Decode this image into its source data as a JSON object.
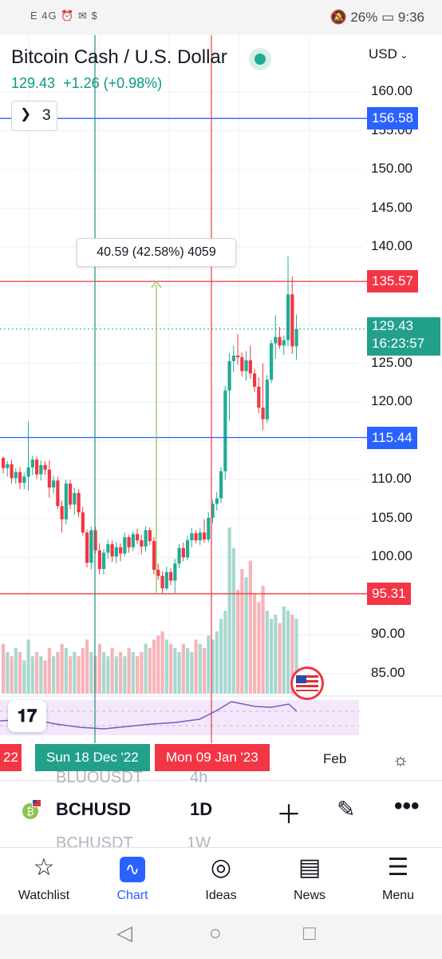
{
  "status_bar": {
    "left": "E 4G ⏰ ✉ $",
    "battery": "26%",
    "time": "9:36"
  },
  "header": {
    "title": "Bitcoin Cash / U.S. Dollar",
    "price": "129.43",
    "change": "+1.26 (+0.98%)",
    "currency": "USD",
    "indicators_count": "3"
  },
  "axis_labels": [
    "160.00",
    "155.00",
    "150.00",
    "145.00",
    "140.00",
    "125.00",
    "120.00",
    "110.00",
    "105.00",
    "100.00",
    "90.00",
    "85.00"
  ],
  "price_tags": {
    "blue_top": "156.58",
    "red_top": "135.57",
    "current": "129.43",
    "countdown": "16:23:57",
    "blue_bottom": "115.44",
    "red_bottom": "95.31"
  },
  "measure": {
    "label": "40.59 (42.58%) 4059"
  },
  "dates": {
    "left_cut": "22",
    "first": "Sun 18 Dec '22",
    "second": "Mon 09 Jan '23",
    "feb": "Feb"
  },
  "symbol_list": {
    "faded_top_symbol": "BLUOUSDT",
    "faded_top_tf": "4h",
    "faded_bottom_symbol": "BCHUSDT",
    "faded_bottom_tf": "1W"
  },
  "toolbar": {
    "symbol": "BCHUSD",
    "timeframe": "1D"
  },
  "nav": [
    {
      "label": "Watchlist",
      "icon": "star-icon"
    },
    {
      "label": "Chart",
      "icon": "chart-icon"
    },
    {
      "label": "Ideas",
      "icon": "bulb-icon"
    },
    {
      "label": "News",
      "icon": "news-icon"
    },
    {
      "label": "Menu",
      "icon": "menu-icon"
    }
  ],
  "colors": {
    "up": "#22ab94",
    "down": "#f23645",
    "blue": "#2962ff",
    "accent": "#2962ff"
  },
  "chart_data": {
    "type": "candlestick",
    "ylim": [
      80,
      163
    ],
    "hlines": [
      156.58,
      135.57,
      115.44,
      95.31
    ],
    "current": 129.43,
    "candles": [
      [
        112.8,
        113.0,
        110.8,
        111.5
      ],
      [
        111.5,
        112.4,
        110.4,
        112.0
      ],
      [
        112.0,
        112.6,
        109.5,
        110.2
      ],
      [
        110.2,
        111.5,
        109.5,
        111.0
      ],
      [
        111.0,
        111.6,
        108.8,
        109.6
      ],
      [
        109.6,
        110.9,
        108.8,
        110.4
      ],
      [
        110.4,
        117.5,
        108.6,
        111.6
      ],
      [
        111.6,
        113.1,
        110.6,
        112.6
      ],
      [
        112.6,
        113.0,
        110.1,
        110.7
      ],
      [
        110.7,
        112.5,
        109.9,
        111.9
      ],
      [
        111.9,
        112.4,
        110.6,
        111.3
      ],
      [
        111.3,
        112.5,
        107.7,
        109.0
      ],
      [
        109.0,
        110.5,
        108.2,
        109.9
      ],
      [
        109.9,
        110.4,
        106.2,
        106.6
      ],
      [
        106.6,
        107.3,
        103.2,
        104.9
      ],
      [
        104.9,
        110.0,
        104.2,
        109.5
      ],
      [
        109.5,
        110.0,
        106.2,
        106.8
      ],
      [
        106.8,
        109.0,
        105.5,
        108.3
      ],
      [
        108.3,
        108.8,
        105.2,
        105.8
      ],
      [
        105.8,
        106.5,
        102.8,
        103.2
      ],
      [
        103.2,
        103.6,
        98.7,
        99.3
      ],
      [
        99.3,
        104.0,
        98.4,
        103.5
      ],
      [
        103.5,
        103.9,
        100.5,
        100.9
      ],
      [
        100.9,
        101.8,
        97.8,
        98.5
      ],
      [
        98.5,
        101.1,
        97.8,
        100.6
      ],
      [
        100.6,
        102.3,
        99.8,
        101.7
      ],
      [
        101.7,
        102.2,
        99.4,
        100.1
      ],
      [
        100.1,
        102.0,
        99.2,
        101.3
      ],
      [
        101.3,
        101.8,
        99.5,
        100.5
      ],
      [
        100.5,
        103.2,
        100.1,
        102.6
      ],
      [
        102.6,
        102.9,
        100.6,
        101.3
      ],
      [
        101.3,
        103.4,
        100.8,
        103.0
      ],
      [
        103.0,
        103.7,
        101.7,
        102.2
      ],
      [
        102.2,
        102.9,
        100.4,
        101.4
      ],
      [
        101.4,
        104.0,
        100.7,
        103.5
      ],
      [
        103.5,
        103.9,
        101.6,
        102.1
      ],
      [
        102.1,
        102.6,
        97.8,
        98.4
      ],
      [
        98.4,
        99.2,
        97.1,
        97.6
      ],
      [
        97.6,
        98.2,
        95.3,
        96.0
      ],
      [
        96.0,
        98.8,
        95.7,
        98.1
      ],
      [
        98.1,
        98.6,
        96.4,
        97.0
      ],
      [
        97.0,
        99.8,
        95.4,
        99.2
      ],
      [
        99.2,
        101.7,
        98.6,
        101.2
      ],
      [
        101.2,
        101.9,
        99.5,
        100.0
      ],
      [
        100.0,
        102.8,
        99.6,
        102.2
      ],
      [
        102.2,
        103.8,
        101.3,
        103.1
      ],
      [
        103.1,
        103.5,
        101.8,
        102.2
      ],
      [
        102.2,
        103.8,
        101.6,
        103.2
      ],
      [
        103.2,
        104.9,
        101.9,
        102.3
      ],
      [
        102.3,
        105.8,
        101.9,
        105.1
      ],
      [
        105.1,
        107.4,
        104.4,
        106.9
      ],
      [
        106.9,
        108.4,
        106.0,
        107.6
      ],
      [
        107.6,
        111.6,
        107.0,
        111.1
      ],
      [
        111.1,
        122.1,
        110.0,
        121.5
      ],
      [
        121.5,
        126.3,
        117.6,
        125.3
      ],
      [
        125.3,
        127.3,
        123.9,
        126.0
      ],
      [
        126.0,
        128.8,
        124.8,
        125.8
      ],
      [
        125.8,
        126.4,
        123.3,
        124.0
      ],
      [
        124.0,
        126.6,
        122.8,
        125.4
      ],
      [
        125.4,
        127.3,
        123.0,
        123.7
      ],
      [
        123.7,
        124.3,
        121.3,
        122.0
      ],
      [
        122.0,
        123.2,
        118.6,
        119.3
      ],
      [
        119.3,
        125.0,
        116.4,
        117.8
      ],
      [
        117.8,
        123.5,
        117.3,
        122.9
      ],
      [
        122.9,
        128.0,
        122.5,
        127.6
      ],
      [
        127.6,
        131.2,
        125.6,
        128.4
      ],
      [
        128.4,
        129.7,
        126.9,
        127.3
      ],
      [
        127.3,
        128.6,
        126.1,
        128.0
      ],
      [
        128.0,
        138.8,
        127.2,
        133.9
      ],
      [
        133.9,
        136.2,
        126.2,
        127.2
      ],
      [
        127.2,
        131.3,
        125.5,
        129.4
      ]
    ],
    "volumes": [
      12,
      10,
      9,
      11,
      10,
      8,
      13,
      9,
      10,
      9,
      8,
      11,
      9,
      10,
      12,
      11,
      9,
      10,
      9,
      11,
      13,
      10,
      9,
      12,
      10,
      9,
      11,
      9,
      10,
      9,
      11,
      10,
      9,
      10,
      12,
      11,
      13,
      14,
      15,
      13,
      12,
      11,
      10,
      12,
      11,
      10,
      13,
      12,
      11,
      14,
      13,
      15,
      18,
      20,
      40,
      35,
      25,
      30,
      28,
      32,
      24,
      22,
      26,
      20,
      18,
      19,
      17,
      21,
      20,
      19,
      18
    ]
  }
}
